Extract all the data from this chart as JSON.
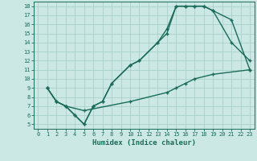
{
  "xlabel": "Humidex (Indice chaleur)",
  "bg_color": "#cce8e4",
  "grid_color": "#aacfcb",
  "line_color": "#1a6b5a",
  "xlim": [
    -0.5,
    23.5
  ],
  "ylim": [
    4.5,
    18.5
  ],
  "xticks": [
    0,
    1,
    2,
    3,
    4,
    5,
    6,
    7,
    8,
    9,
    10,
    11,
    12,
    13,
    14,
    15,
    16,
    17,
    18,
    19,
    20,
    21,
    22,
    23
  ],
  "yticks": [
    5,
    6,
    7,
    8,
    9,
    10,
    11,
    12,
    13,
    14,
    15,
    16,
    17,
    18
  ],
  "line1_x": [
    1,
    2,
    3,
    4,
    5,
    6,
    7,
    8,
    10,
    11,
    13,
    14,
    15,
    16,
    17,
    18,
    19,
    21,
    23
  ],
  "line1_y": [
    9,
    7.5,
    7,
    6,
    5,
    7,
    7.5,
    9.5,
    11.5,
    12,
    14,
    15.5,
    18,
    18,
    18,
    18,
    17.5,
    14,
    12
  ],
  "line2_x": [
    1,
    2,
    3,
    4,
    5,
    6,
    7,
    8,
    10,
    11,
    13,
    14,
    15,
    16,
    17,
    18,
    19,
    21,
    23
  ],
  "line2_y": [
    9,
    7.5,
    7,
    6,
    5,
    7,
    7.5,
    9.5,
    11.5,
    12,
    14,
    15,
    18,
    18,
    18,
    18,
    17.5,
    16.5,
    11
  ],
  "line3_x": [
    1,
    2,
    3,
    5,
    10,
    14,
    15,
    16,
    17,
    19,
    23
  ],
  "line3_y": [
    9,
    7.5,
    7,
    6.5,
    7.5,
    8.5,
    9,
    9.5,
    10,
    10.5,
    11
  ]
}
